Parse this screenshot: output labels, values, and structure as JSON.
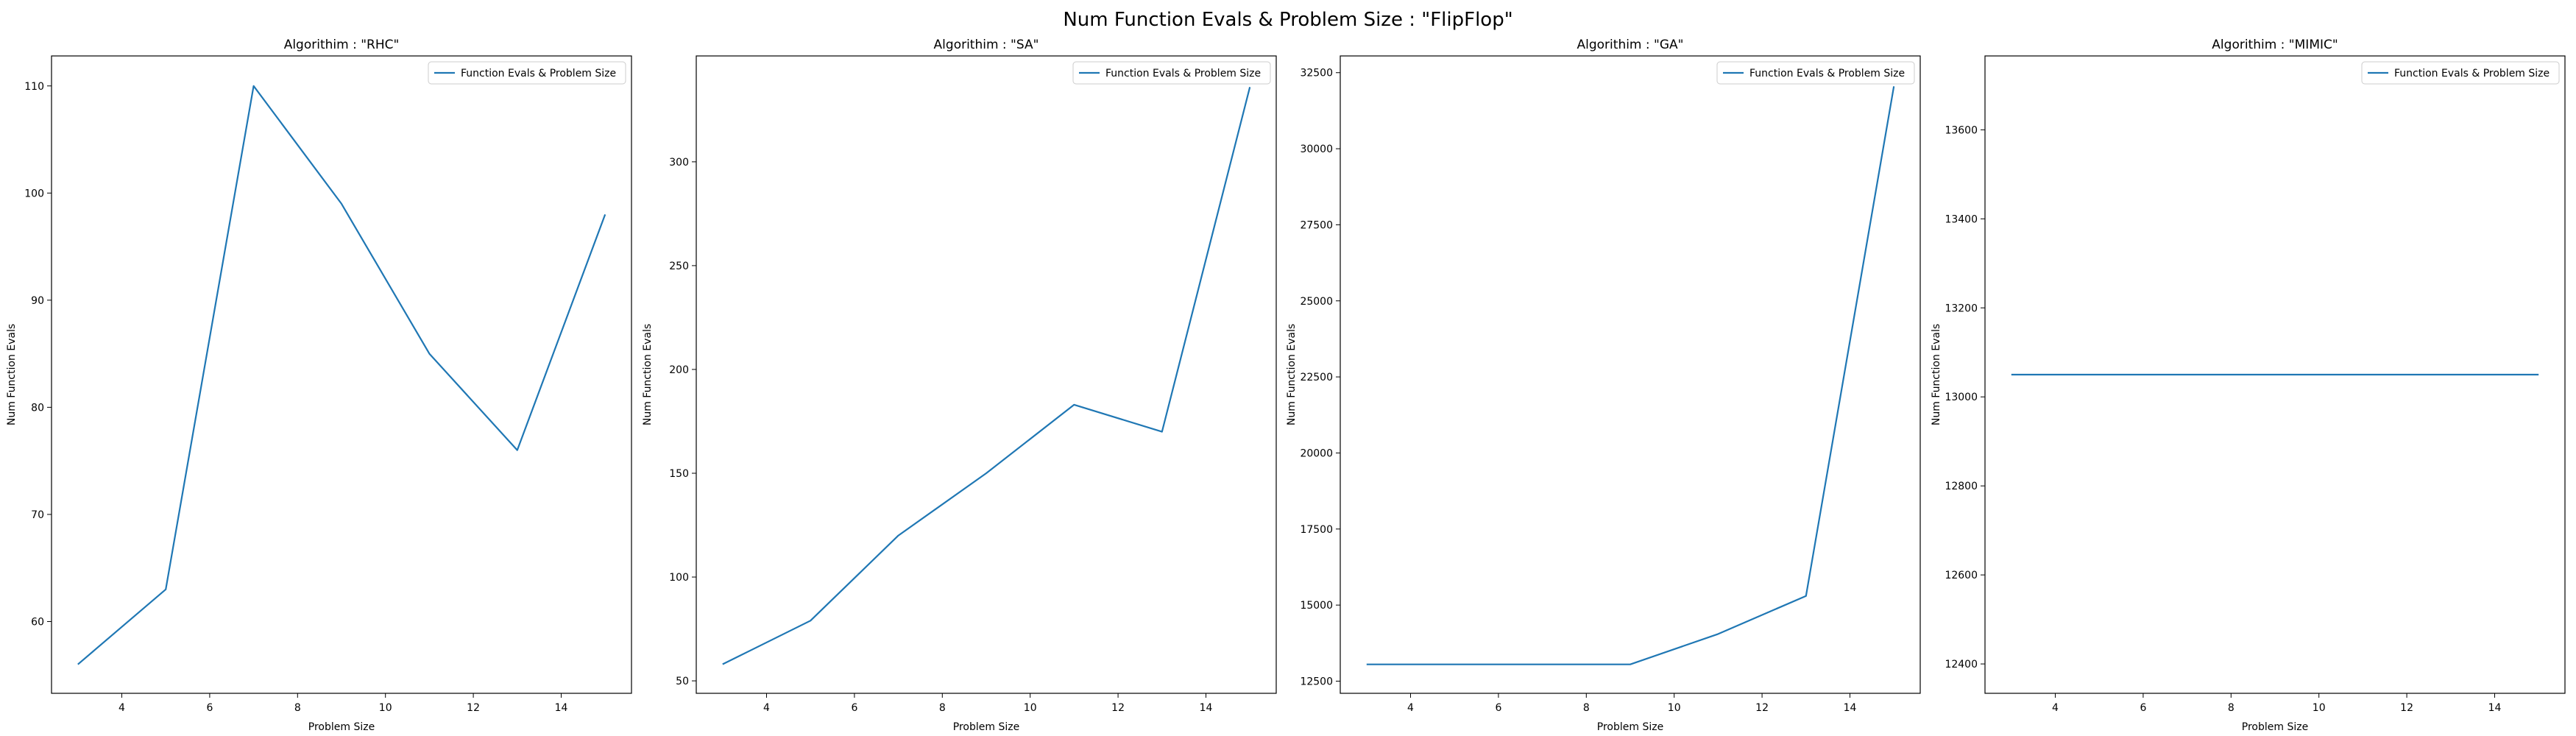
{
  "figure": {
    "title": "Num Function Evals & Problem Size : \"FlipFlop\""
  },
  "colors": {
    "line": "#1f77b4",
    "axes": "#000000",
    "background": "#ffffff"
  },
  "chart_data": [
    {
      "type": "line",
      "title": "Algorithim : \"RHC\"",
      "xlabel": "Problem Size",
      "ylabel": "Num Function Evals",
      "legend": "top-right",
      "grid": false,
      "xlim": [
        2.4,
        15.6
      ],
      "ylim": [
        53.3,
        112.8
      ],
      "xticks": [
        4,
        6,
        8,
        10,
        12,
        14
      ],
      "yticks": [
        60,
        70,
        80,
        90,
        100,
        110
      ],
      "series": [
        {
          "name": "Function Evals & Problem Size",
          "x": [
            3,
            5,
            7,
            9,
            11,
            13,
            15
          ],
          "y": [
            56,
            63,
            110,
            99,
            85,
            76,
            98
          ]
        }
      ]
    },
    {
      "type": "line",
      "title": "Algorithim : \"SA\"",
      "xlabel": "Problem Size",
      "ylabel": "Num Function Evals",
      "legend": "top-right",
      "grid": false,
      "xlim": [
        2.4,
        15.6
      ],
      "ylim": [
        44,
        351
      ],
      "xticks": [
        4,
        6,
        8,
        10,
        12,
        14
      ],
      "yticks": [
        50,
        100,
        150,
        200,
        250,
        300
      ],
      "series": [
        {
          "name": "Function Evals & Problem Size",
          "x": [
            3,
            5,
            7,
            9,
            11,
            13,
            15
          ],
          "y": [
            58,
            79,
            120,
            150,
            183,
            170,
            336
          ]
        }
      ]
    },
    {
      "type": "line",
      "title": "Algorithim : \"GA\"",
      "xlabel": "Problem Size",
      "ylabel": "Num Function Evals",
      "legend": "top-right",
      "grid": false,
      "xlim": [
        2.4,
        15.6
      ],
      "ylim": [
        12100,
        33050
      ],
      "xticks": [
        4,
        6,
        8,
        10,
        12,
        14
      ],
      "yticks": [
        12500,
        15000,
        17500,
        20000,
        22500,
        25000,
        27500,
        30000,
        32500
      ],
      "series": [
        {
          "name": "Function Evals & Problem Size",
          "x": [
            3,
            5,
            7,
            9,
            11,
            13,
            15
          ],
          "y": [
            13050,
            13050,
            13050,
            13050,
            14050,
            15300,
            32050
          ]
        }
      ]
    },
    {
      "type": "line",
      "title": "Algorithim : \"MIMIC\"",
      "xlabel": "Problem Size",
      "ylabel": "Num Function Evals",
      "legend": "top-right",
      "grid": false,
      "xlim": [
        2.4,
        15.6
      ],
      "ylim": [
        12334,
        13766
      ],
      "xticks": [
        4,
        6,
        8,
        10,
        12,
        14
      ],
      "yticks": [
        12400,
        12600,
        12800,
        13000,
        13200,
        13400,
        13600
      ],
      "series": [
        {
          "name": "Function Evals & Problem Size",
          "x": [
            3,
            5,
            7,
            9,
            11,
            13,
            15
          ],
          "y": [
            13050,
            13050,
            13050,
            13050,
            13050,
            13050,
            13050
          ]
        }
      ]
    }
  ]
}
